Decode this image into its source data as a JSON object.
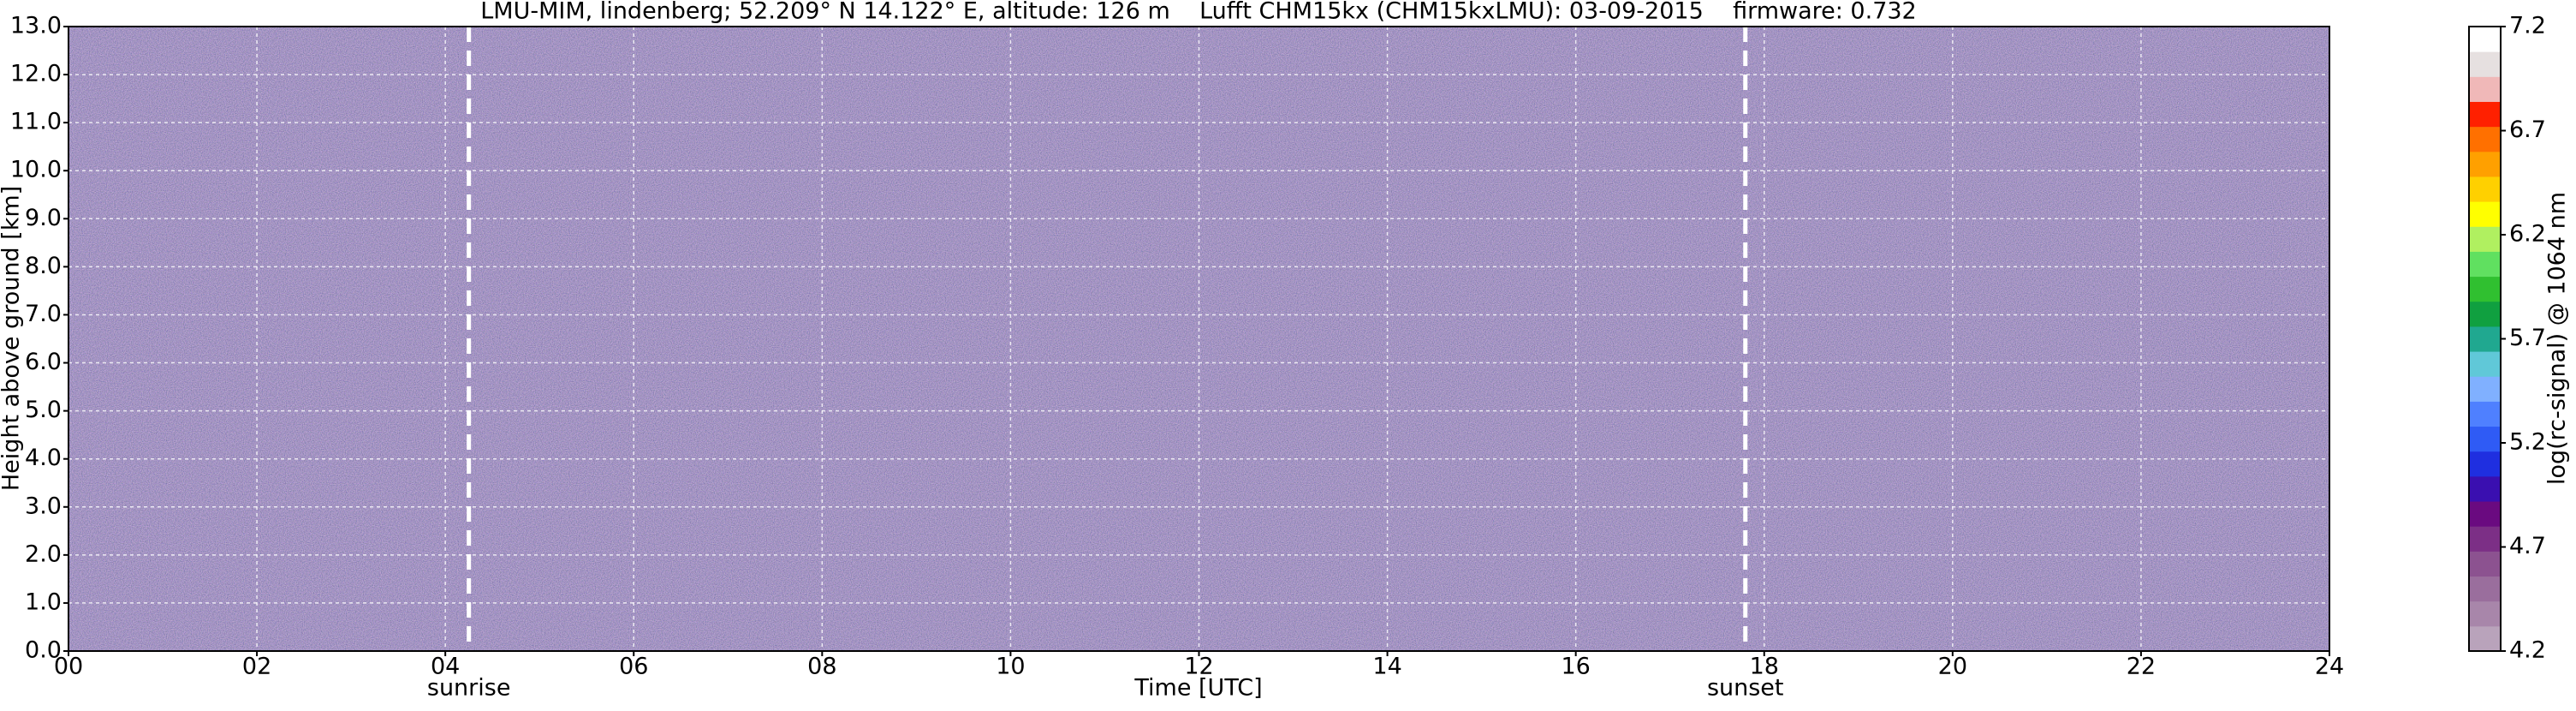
{
  "chart_data": {
    "type": "heatmap",
    "title": "LMU-MIM, lindenberg; 52.209° N 14.122° E, altitude: 126 m    Lufft CHM15kx (CHM15kxLMU): 03-09-2015    firmware: 0.732",
    "xlabel": "Time [UTC]",
    "ylabel": "Height above ground [km]",
    "xlim": [
      0,
      24
    ],
    "xticks": [
      {
        "value": 0,
        "label": "00"
      },
      {
        "value": 2,
        "label": "02"
      },
      {
        "value": 4,
        "label": "04"
      },
      {
        "value": 6,
        "label": "06"
      },
      {
        "value": 8,
        "label": "08"
      },
      {
        "value": 10,
        "label": "10"
      },
      {
        "value": 12,
        "label": "12"
      },
      {
        "value": 14,
        "label": "14"
      },
      {
        "value": 16,
        "label": "16"
      },
      {
        "value": 18,
        "label": "18"
      },
      {
        "value": 20,
        "label": "20"
      },
      {
        "value": 22,
        "label": "22"
      },
      {
        "value": 24,
        "label": "24"
      }
    ],
    "ylim": [
      0,
      13
    ],
    "yticks": [
      {
        "value": 0,
        "label": "0.0"
      },
      {
        "value": 1,
        "label": "1.0"
      },
      {
        "value": 2,
        "label": "2.0"
      },
      {
        "value": 3,
        "label": "3.0"
      },
      {
        "value": 4,
        "label": "4.0"
      },
      {
        "value": 5,
        "label": "5.0"
      },
      {
        "value": 6,
        "label": "6.0"
      },
      {
        "value": 7,
        "label": "7.0"
      },
      {
        "value": 8,
        "label": "8.0"
      },
      {
        "value": 9,
        "label": "9.0"
      },
      {
        "value": 10,
        "label": "10.0"
      },
      {
        "value": 11,
        "label": "11.0"
      },
      {
        "value": 12,
        "label": "12.0"
      },
      {
        "value": 13,
        "label": "13.0"
      }
    ],
    "grid": true,
    "annotations": [
      {
        "x": 4.25,
        "label": "sunrise"
      },
      {
        "x": 17.8,
        "label": "sunset"
      }
    ],
    "colorbar": {
      "label": "log(rc-signal) @ 1064 nm",
      "clim": [
        4.2,
        7.2
      ],
      "ticks": [
        4.2,
        4.7,
        5.2,
        5.7,
        6.2,
        6.7,
        7.2
      ],
      "colors": [
        "#b9a3bb",
        "#a886aa",
        "#9a6e9d",
        "#8c5290",
        "#7c2f86",
        "#6a0a80",
        "#3a0fb0",
        "#1f2fe0",
        "#2f5bf5",
        "#4f80ff",
        "#80b0ff",
        "#60c8d8",
        "#20a890",
        "#10a040",
        "#30c030",
        "#60e060",
        "#b0f060",
        "#ffff00",
        "#ffd000",
        "#ffa000",
        "#ff7000",
        "#ff2000",
        "#f0b8b8",
        "#e6e0e0",
        "#ffffff"
      ]
    }
  }
}
